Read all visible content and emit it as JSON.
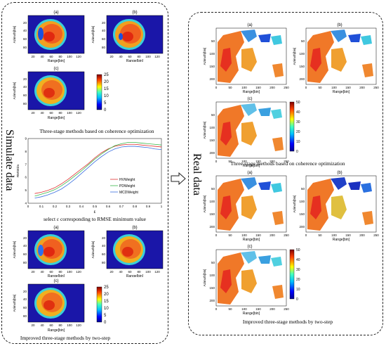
{
  "left_panel": {
    "vertical_title": "Simulate data",
    "plot_labels": {
      "a": "(a)",
      "b": "(b)",
      "c": "(c)"
    },
    "range_label": "Range[bin]",
    "azimuth_label": "Azimuth[bin]",
    "range_ticks": [
      "20",
      "40",
      "60",
      "80",
      "100",
      "120"
    ],
    "azimuth_ticks": [
      "20",
      "40",
      "60",
      "80"
    ],
    "colorbar_ticks": [
      "25",
      "20",
      "15",
      "10",
      "5",
      "0"
    ],
    "caption_top": "Three-stage methods based on coherence optimization",
    "caption_mid": "select ε corresponding to RMSE minimum value",
    "caption_bottom": "Improved three-stage methods by two-step"
  },
  "right_panel": {
    "vertical_title": "Real data",
    "plot_labels": {
      "a": "(a)",
      "b": "(b)",
      "c": "(c)"
    },
    "range_label": "Range[bin]",
    "azimuth_label": "Azimuth[bin]",
    "range_ticks": [
      "0",
      "50",
      "100",
      "150",
      "200",
      "250"
    ],
    "azimuth_ticks": [
      "50",
      "100",
      "150",
      "200"
    ],
    "colorbar_ticks": [
      "50",
      "40",
      "30",
      "20",
      "10",
      "0"
    ],
    "caption_top": "Three-stage methods based on coherence optimization",
    "caption_bottom": "Improved three-stage methods by two-step"
  },
  "colors": {
    "arrow": "#222222",
    "panel_border": "#222222"
  },
  "chart_data": {
    "type": "line",
    "title": "",
    "xlabel": "ε",
    "ylabel": "RMSE/m",
    "xlim": [
      0,
      1
    ],
    "ylim": [
      4,
      9
    ],
    "x_ticks": [
      "0",
      "0.1",
      "0.2",
      "0.3",
      "0.4",
      "0.5",
      "0.6",
      "0.7",
      "0.8",
      "0.9",
      "1"
    ],
    "y_ticks": [
      "4",
      "5",
      "6",
      "7",
      "8",
      "9"
    ],
    "legend_position": "right",
    "x": [
      0.05,
      0.1,
      0.15,
      0.2,
      0.25,
      0.3,
      0.35,
      0.4,
      0.45,
      0.5,
      0.55,
      0.6,
      0.65,
      0.7,
      0.75,
      0.8,
      0.85,
      0.9,
      0.95,
      1.0
    ],
    "series": [
      {
        "name": "HVWeight",
        "color": "#e03030",
        "values": [
          4.75,
          4.85,
          5.0,
          5.2,
          5.5,
          5.85,
          6.25,
          6.65,
          7.05,
          7.5,
          7.9,
          8.2,
          8.4,
          8.5,
          8.55,
          8.55,
          8.5,
          8.45,
          8.4,
          8.35
        ]
      },
      {
        "name": "PDWeight",
        "color": "#3ab84a",
        "values": [
          4.55,
          4.7,
          4.85,
          5.05,
          5.35,
          5.7,
          6.1,
          6.5,
          6.95,
          7.4,
          7.8,
          8.15,
          8.45,
          8.6,
          8.7,
          8.7,
          8.65,
          8.6,
          8.55,
          8.5
        ]
      },
      {
        "name": "MCDWeight",
        "color": "#3a6fe0",
        "values": [
          4.4,
          4.5,
          4.65,
          4.85,
          5.1,
          5.45,
          5.85,
          6.3,
          6.75,
          7.2,
          7.6,
          7.95,
          8.2,
          8.35,
          8.4,
          8.4,
          8.35,
          8.3,
          8.2,
          8.15
        ]
      }
    ]
  }
}
